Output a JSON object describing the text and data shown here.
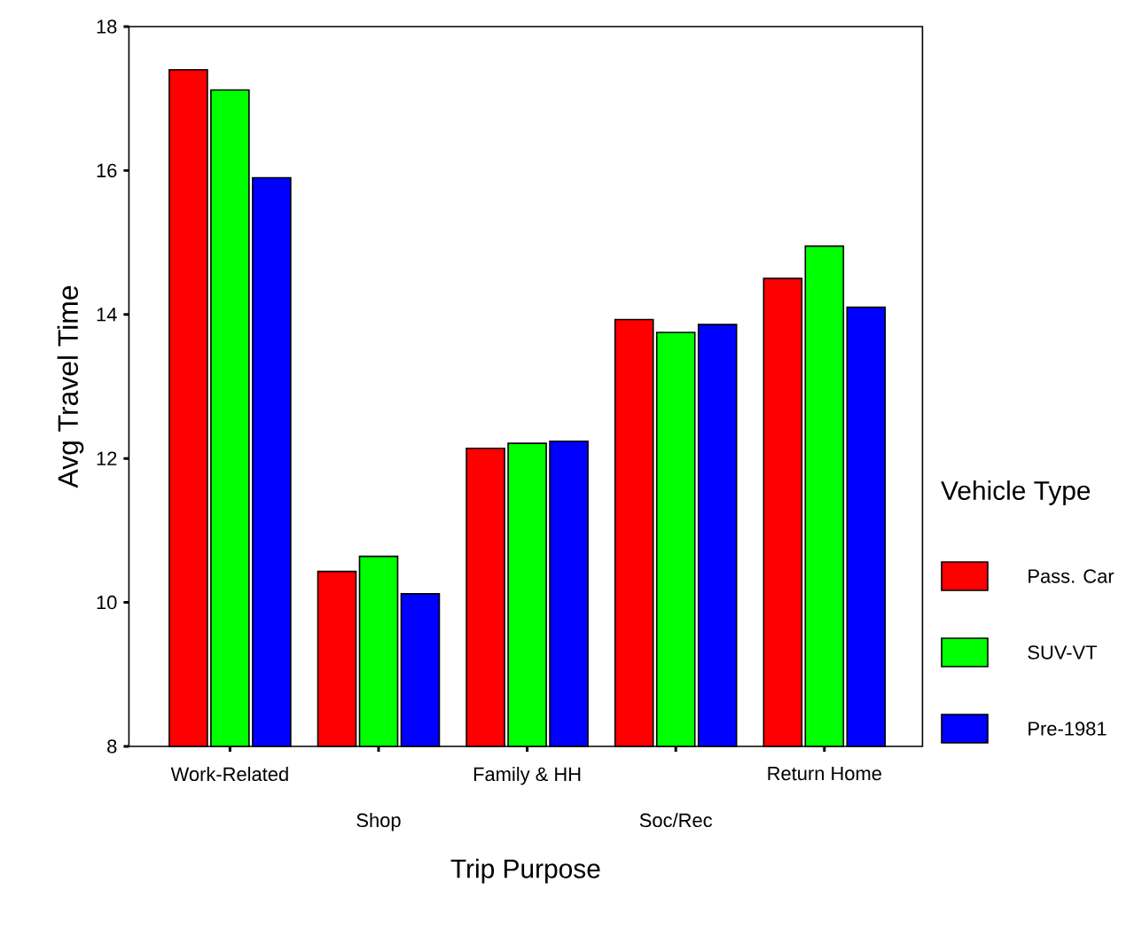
{
  "chart_data": {
    "type": "bar",
    "xlabel": "Trip Purpose",
    "ylabel": "Avg Travel Time",
    "legend_title": "Vehicle Type",
    "legend": "right",
    "grid": false,
    "categories": [
      "Work-Related",
      "Shop",
      "Family & HH",
      "Soc/Rec",
      "Return Home"
    ],
    "ylim": [
      8,
      18
    ],
    "yticks": [
      8,
      10,
      12,
      14,
      16,
      18
    ],
    "series": [
      {
        "name": "Pass. Car",
        "color": "#ff0000",
        "values": [
          17.4,
          10.43,
          12.14,
          13.93,
          14.5
        ]
      },
      {
        "name": "SUV-VT",
        "color": "#00ff00",
        "values": [
          17.12,
          10.64,
          12.21,
          13.75,
          14.95
        ]
      },
      {
        "name": "Pre-1981",
        "color": "#0000ff",
        "values": [
          15.9,
          10.12,
          12.24,
          13.86,
          14.1
        ]
      }
    ]
  }
}
